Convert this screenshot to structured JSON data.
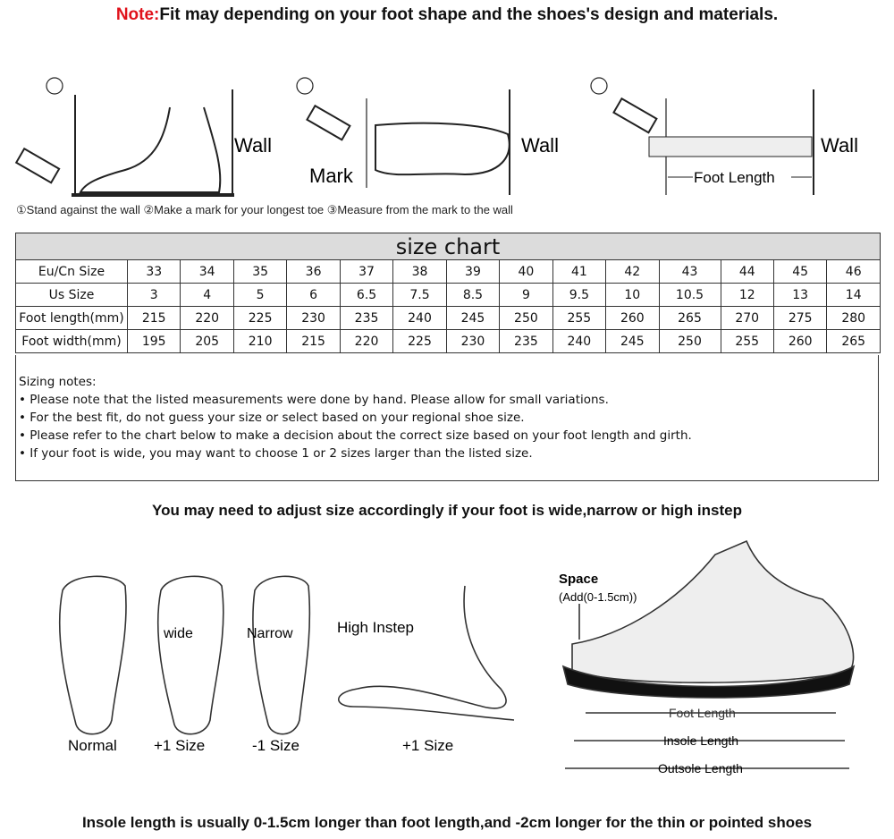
{
  "header": {
    "note_prefix": "Note:",
    "note_text": "Fit may depending on your foot shape and the shoes's design and materials."
  },
  "steps": [
    {
      "num": "①",
      "labels": [
        "Wall"
      ]
    },
    {
      "num": "②",
      "labels": [
        "Wall",
        "Mark"
      ]
    },
    {
      "num": "③",
      "labels": [
        "Wall",
        "Foot Length"
      ]
    }
  ],
  "steps_caption": "①Stand against the wall  ②Make a mark for your longest toe  ③Measure from the mark to the wall",
  "size_chart": {
    "title": "size chart",
    "rows": [
      {
        "label": "Eu/Cn Size",
        "values": [
          "33",
          "34",
          "35",
          "36",
          "37",
          "38",
          "39",
          "40",
          "41",
          "42",
          "43",
          "44",
          "45",
          "46"
        ]
      },
      {
        "label": "Us Size",
        "values": [
          "3",
          "4",
          "5",
          "6",
          "6.5",
          "7.5",
          "8.5",
          "9",
          "9.5",
          "10",
          "10.5",
          "12",
          "13",
          "14"
        ]
      },
      {
        "label": "Foot length(mm)",
        "values": [
          "215",
          "220",
          "225",
          "230",
          "235",
          "240",
          "245",
          "250",
          "255",
          "260",
          "265",
          "270",
          "275",
          "280"
        ]
      },
      {
        "label": "Foot width(mm)",
        "values": [
          "195",
          "205",
          "210",
          "215",
          "220",
          "225",
          "230",
          "235",
          "240",
          "245",
          "250",
          "255",
          "260",
          "265"
        ]
      }
    ]
  },
  "sizing_notes": {
    "heading": "Sizing notes:",
    "items": [
      "• Please note that the listed measurements were done by hand. Please allow for small variations.",
      "• For the best fit, do not guess your size or select based on your regional shoe size.",
      "• Please refer to the chart below to make a decision about the correct size based on your foot length and girth.",
      "• If your foot is wide, you may want to choose 1 or 2 sizes larger than the listed size."
    ]
  },
  "adjust_heading": "You may need to adjust size accordingly if your foot is wide,narrow or high instep",
  "foot_types": [
    {
      "caption": "Normal",
      "tag": ""
    },
    {
      "caption": "+1 Size",
      "tag": "wide"
    },
    {
      "caption": "-1 Size",
      "tag": "Narrow"
    },
    {
      "caption": "+1 Size",
      "tag": "High Instep"
    }
  ],
  "shoe_diagram": {
    "space_label": "Space",
    "space_sub": "(Add(0-1.5cm))",
    "lengths": [
      "Foot Length",
      "Insole Length",
      "Outsole Length"
    ]
  },
  "footer": "Insole length is usually 0-1.5cm longer than foot length,and -2cm longer for the thin or pointed shoes"
}
